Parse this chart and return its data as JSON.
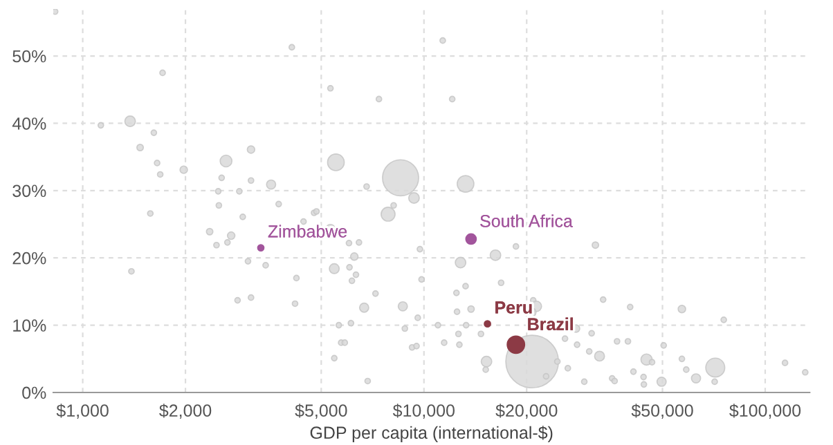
{
  "chart_data": {
    "type": "bubble",
    "xlabel": "GDP per capita (international-$)",
    "log": "x",
    "grid": true,
    "xlim": [
      820,
      135000
    ],
    "ylim": [
      0,
      57
    ],
    "xticks": [
      {
        "value": 1000,
        "label": "$1,000"
      },
      {
        "value": 2000,
        "label": "$2,000"
      },
      {
        "value": 5000,
        "label": "$5,000"
      },
      {
        "value": 10000,
        "label": "$10,000"
      },
      {
        "value": 20000,
        "label": "$20,000"
      },
      {
        "value": 50000,
        "label": "$50,000"
      },
      {
        "value": 100000,
        "label": "$100,000"
      }
    ],
    "yticks": [
      {
        "value": 0,
        "label": "0%"
      },
      {
        "value": 10,
        "label": "10%"
      },
      {
        "value": 20,
        "label": "20%"
      },
      {
        "value": 30,
        "label": "30%"
      },
      {
        "value": 40,
        "label": "40%"
      },
      {
        "value": 50,
        "label": "50%"
      }
    ],
    "series": [
      {
        "color": "#d9d9d9",
        "x": [
          830,
          1130,
          1377,
          1616,
          1473,
          1714,
          1652,
          1687,
          1977,
          2630,
          3113,
          4100,
          2553,
          3113,
          3565,
          2495,
          2877,
          2506,
          3752,
          2944,
          1578,
          4436,
          4764,
          4842,
          5320,
          5520,
          7380,
          6790,
          7850,
          8540,
          8150,
          9350,
          11350,
          12100,
          13240,
          2355,
          2466,
          2723,
          2655,
          3050,
          3436,
          4229,
          1389,
          2843,
          3113,
          4190,
          5320,
          6030,
          6450,
          6250,
          5460,
          6050,
          6320,
          6150,
          7210,
          6680,
          8670,
          5630,
          6110,
          8790,
          5720,
          5860,
          9230,
          5460,
          6840,
          9730,
          12800,
          16200,
          18600,
          31800,
          9840,
          13240,
          12450,
          16830,
          20900,
          21340,
          20650,
          13740,
          12500,
          33500,
          40200,
          57000,
          75600,
          9590,
          10990,
          13290,
          27900,
          12620,
          14690,
          25900,
          31000,
          9510,
          11460,
          12700,
          28100,
          36800,
          39600,
          50400,
          30500,
          32700,
          44900,
          46600,
          57000,
          15250,
          20750,
          24600,
          15170,
          26400,
          22800,
          29500,
          35600,
          36200,
          41100,
          44000,
          44100,
          49700,
          58700,
          62700,
          71400,
          71100,
          114300,
          131000
        ],
        "values": [
          56.6,
          39.7,
          40.3,
          38.6,
          36.4,
          47.5,
          34.1,
          32.4,
          33.1,
          34.4,
          36.1,
          51.3,
          31.9,
          31.5,
          30.9,
          29.9,
          29.9,
          27.8,
          28.0,
          26.1,
          26.6,
          25.4,
          26.7,
          26.9,
          45.2,
          34.2,
          43.6,
          30.6,
          26.5,
          31.9,
          27.8,
          28.9,
          52.3,
          43.6,
          31.0,
          23.9,
          21.9,
          23.3,
          22.3,
          19.5,
          18.9,
          17.0,
          18.0,
          13.7,
          14.1,
          13.2,
          24.3,
          22.2,
          22.3,
          20.2,
          18.4,
          18.6,
          17.5,
          16.6,
          14.7,
          12.6,
          12.8,
          10.0,
          10.3,
          9.5,
          7.4,
          7.4,
          6.7,
          5.1,
          1.7,
          21.3,
          19.3,
          20.4,
          21.7,
          21.9,
          16.8,
          15.8,
          14.8,
          16.3,
          13.7,
          12.8,
          11.9,
          12.4,
          12.0,
          13.8,
          12.7,
          12.4,
          10.8,
          11.1,
          10.0,
          10.0,
          9.5,
          8.7,
          8.7,
          8.0,
          8.8,
          6.9,
          7.4,
          7.1,
          7.1,
          7.6,
          7.6,
          7.0,
          6.1,
          5.4,
          4.9,
          4.5,
          5.0,
          4.6,
          4.6,
          4.6,
          3.4,
          3.6,
          2.4,
          1.6,
          2.1,
          1.7,
          3.1,
          2.3,
          1.2,
          1.6,
          3.4,
          2.1,
          3.7,
          1.6,
          4.4,
          3.0
        ],
        "sizes": [
          0.011,
          0.011,
          0.04,
          0.011,
          0.015,
          0.011,
          0.011,
          0.011,
          0.02,
          0.05,
          0.02,
          0.011,
          0.011,
          0.011,
          0.03,
          0.011,
          0.011,
          0.011,
          0.011,
          0.011,
          0.011,
          0.011,
          0.011,
          0.011,
          0.011,
          0.1,
          0.011,
          0.011,
          0.07,
          0.47,
          0.011,
          0.04,
          0.011,
          0.011,
          0.1,
          0.015,
          0.011,
          0.02,
          0.011,
          0.011,
          0.011,
          0.011,
          0.011,
          0.011,
          0.011,
          0.011,
          0.03,
          0.011,
          0.011,
          0.02,
          0.035,
          0.011,
          0.011,
          0.011,
          0.011,
          0.03,
          0.03,
          0.011,
          0.011,
          0.011,
          0.011,
          0.011,
          0.011,
          0.011,
          0.011,
          0.011,
          0.04,
          0.04,
          0.011,
          0.015,
          0.011,
          0.011,
          0.011,
          0.011,
          0.011,
          0.04,
          0.03,
          0.015,
          0.011,
          0.011,
          0.011,
          0.02,
          0.011,
          0.011,
          0.011,
          0.011,
          0.02,
          0.011,
          0.011,
          0.011,
          0.011,
          0.011,
          0.011,
          0.011,
          0.011,
          0.011,
          0.011,
          0.011,
          0.011,
          0.035,
          0.045,
          0.011,
          0.011,
          0.04,
          1,
          0.011,
          0.011,
          0.011,
          0.011,
          0.011,
          0.011,
          0.011,
          0.011,
          0.011,
          0.011,
          0.03,
          0.011,
          0.03,
          0.13,
          0.011,
          0.011,
          0.011
        ]
      },
      {
        "color": "#a2559c",
        "x": [
          3326,
          13740
        ],
        "values": [
          21.5,
          22.8
        ],
        "sizes": [
          0.011,
          0.034
        ]
      },
      {
        "color": "#8c3a45",
        "x": [
          15350,
          18600
        ],
        "values": [
          10.2,
          7.1
        ],
        "sizes": [
          0.011,
          0.1
        ]
      }
    ],
    "annotations": [
      {
        "text": "Zimbabwe",
        "x": 3326,
        "y": 21.5
      },
      {
        "text": "South Africa",
        "x": 13740,
        "y": 22.8
      },
      {
        "text": "Peru",
        "x": 15350,
        "y": 10.2
      },
      {
        "text": "Brazil",
        "x": 18600,
        "y": 7.1
      }
    ]
  }
}
